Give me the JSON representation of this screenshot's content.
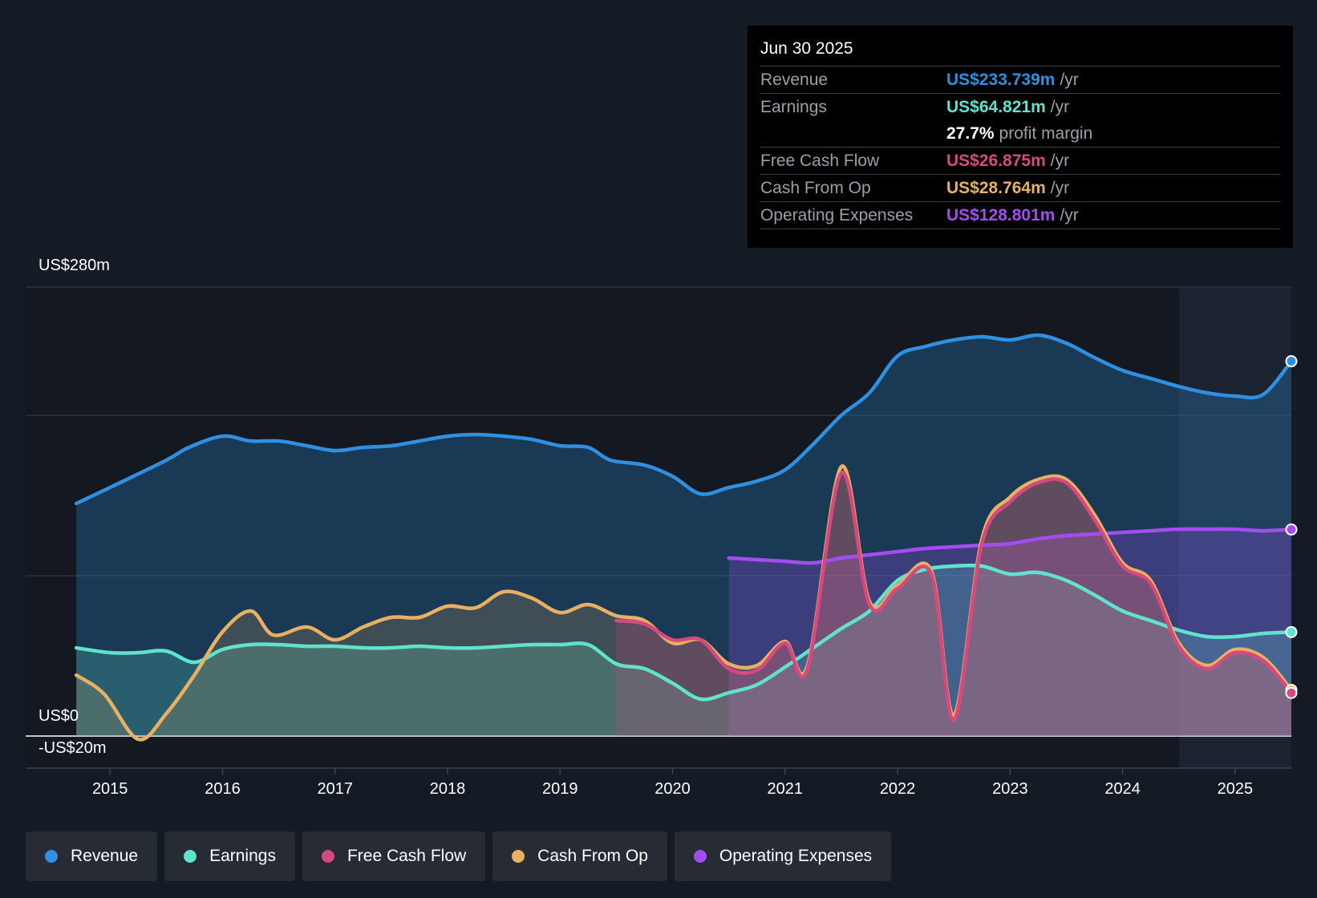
{
  "chart_data": {
    "type": "line",
    "title": "",
    "ylabel": "",
    "xlabel": "",
    "ylim": [
      -20,
      280
    ],
    "y_labels": {
      "top": "US$280m",
      "zero": "US$0",
      "bottom": "-US$20m"
    },
    "x_ticks": [
      "2015",
      "2016",
      "2017",
      "2018",
      "2019",
      "2020",
      "2021",
      "2022",
      "2023",
      "2024",
      "2025"
    ],
    "x_tick_values": [
      2015,
      2016,
      2017,
      2018,
      2019,
      2020,
      2021,
      2022,
      2023,
      2024,
      2025
    ],
    "xlim": [
      2014.25,
      2025.5
    ],
    "series": [
      {
        "name": "Revenue",
        "color": "#2f8fe0",
        "points": [
          [
            2014.7,
            145
          ],
          [
            2015.0,
            155
          ],
          [
            2015.5,
            172
          ],
          [
            2015.7,
            180
          ],
          [
            2016.0,
            187
          ],
          [
            2016.25,
            184
          ],
          [
            2016.5,
            184
          ],
          [
            2016.75,
            181
          ],
          [
            2017.0,
            178
          ],
          [
            2017.25,
            180
          ],
          [
            2017.5,
            181
          ],
          [
            2017.75,
            184
          ],
          [
            2018.0,
            187
          ],
          [
            2018.25,
            188
          ],
          [
            2018.5,
            187
          ],
          [
            2018.75,
            185
          ],
          [
            2019.0,
            181
          ],
          [
            2019.25,
            180
          ],
          [
            2019.45,
            172
          ],
          [
            2019.75,
            169
          ],
          [
            2020.0,
            162
          ],
          [
            2020.25,
            151
          ],
          [
            2020.5,
            155
          ],
          [
            2020.75,
            159
          ],
          [
            2021.0,
            166
          ],
          [
            2021.25,
            182
          ],
          [
            2021.5,
            200
          ],
          [
            2021.75,
            214
          ],
          [
            2022.0,
            237
          ],
          [
            2022.25,
            243
          ],
          [
            2022.5,
            247
          ],
          [
            2022.75,
            249
          ],
          [
            2023.0,
            247
          ],
          [
            2023.25,
            250
          ],
          [
            2023.5,
            245
          ],
          [
            2023.75,
            236
          ],
          [
            2024.0,
            228
          ],
          [
            2024.25,
            223
          ],
          [
            2024.5,
            218
          ],
          [
            2024.75,
            214
          ],
          [
            2025.0,
            212
          ],
          [
            2025.25,
            213
          ],
          [
            2025.5,
            233.739
          ]
        ]
      },
      {
        "name": "Earnings",
        "color": "#5fe3cc",
        "points": [
          [
            2014.7,
            55
          ],
          [
            2015.0,
            52
          ],
          [
            2015.25,
            52
          ],
          [
            2015.5,
            53
          ],
          [
            2015.75,
            46
          ],
          [
            2016.0,
            54
          ],
          [
            2016.25,
            57
          ],
          [
            2016.5,
            57
          ],
          [
            2016.75,
            56
          ],
          [
            2017.0,
            56
          ],
          [
            2017.25,
            55
          ],
          [
            2017.5,
            55
          ],
          [
            2017.75,
            56
          ],
          [
            2018.0,
            55
          ],
          [
            2018.25,
            55
          ],
          [
            2018.5,
            56
          ],
          [
            2018.75,
            57
          ],
          [
            2019.0,
            57
          ],
          [
            2019.25,
            57
          ],
          [
            2019.5,
            45
          ],
          [
            2019.75,
            42
          ],
          [
            2020.0,
            33
          ],
          [
            2020.25,
            23
          ],
          [
            2020.5,
            27
          ],
          [
            2020.75,
            32
          ],
          [
            2021.0,
            43
          ],
          [
            2021.25,
            55
          ],
          [
            2021.5,
            67
          ],
          [
            2021.75,
            78
          ],
          [
            2022.0,
            97
          ],
          [
            2022.25,
            104
          ],
          [
            2022.5,
            106
          ],
          [
            2022.75,
            106
          ],
          [
            2023.0,
            101
          ],
          [
            2023.25,
            102
          ],
          [
            2023.5,
            97
          ],
          [
            2023.75,
            88
          ],
          [
            2024.0,
            78
          ],
          [
            2024.25,
            72
          ],
          [
            2024.5,
            66
          ],
          [
            2024.75,
            62
          ],
          [
            2025.0,
            62
          ],
          [
            2025.25,
            64
          ],
          [
            2025.5,
            64.821
          ]
        ]
      },
      {
        "name": "Free Cash Flow",
        "color": "#d6497f",
        "points": [
          [
            2019.5,
            72
          ],
          [
            2019.75,
            70
          ],
          [
            2020.0,
            60
          ],
          [
            2020.25,
            60
          ],
          [
            2020.5,
            42
          ],
          [
            2020.75,
            41
          ],
          [
            2021.0,
            58
          ],
          [
            2021.2,
            42
          ],
          [
            2021.5,
            164
          ],
          [
            2021.75,
            82
          ],
          [
            2022.0,
            92
          ],
          [
            2022.3,
            101
          ],
          [
            2022.5,
            10
          ],
          [
            2022.75,
            120
          ],
          [
            2023.0,
            146
          ],
          [
            2023.25,
            158
          ],
          [
            2023.5,
            158
          ],
          [
            2023.75,
            135
          ],
          [
            2024.0,
            106
          ],
          [
            2024.25,
            95
          ],
          [
            2024.5,
            56
          ],
          [
            2024.75,
            42
          ],
          [
            2025.0,
            52
          ],
          [
            2025.25,
            47
          ],
          [
            2025.5,
            26.875
          ]
        ]
      },
      {
        "name": "Cash From Op",
        "color": "#e8b061",
        "points": [
          [
            2014.7,
            38
          ],
          [
            2014.95,
            26
          ],
          [
            2015.25,
            -2
          ],
          [
            2015.5,
            14
          ],
          [
            2015.75,
            38
          ],
          [
            2016.0,
            65
          ],
          [
            2016.25,
            78
          ],
          [
            2016.45,
            63
          ],
          [
            2016.75,
            68
          ],
          [
            2017.0,
            60
          ],
          [
            2017.25,
            68
          ],
          [
            2017.5,
            74
          ],
          [
            2017.75,
            74
          ],
          [
            2018.0,
            81
          ],
          [
            2018.25,
            80
          ],
          [
            2018.5,
            90
          ],
          [
            2018.75,
            86
          ],
          [
            2019.0,
            77
          ],
          [
            2019.25,
            82
          ],
          [
            2019.5,
            75
          ],
          [
            2019.75,
            72
          ],
          [
            2020.0,
            58
          ],
          [
            2020.25,
            60
          ],
          [
            2020.5,
            45
          ],
          [
            2020.75,
            44
          ],
          [
            2021.0,
            59
          ],
          [
            2021.2,
            44
          ],
          [
            2021.5,
            168
          ],
          [
            2021.75,
            84
          ],
          [
            2022.0,
            94
          ],
          [
            2022.3,
            103
          ],
          [
            2022.5,
            13
          ],
          [
            2022.75,
            123
          ],
          [
            2023.0,
            149
          ],
          [
            2023.25,
            160
          ],
          [
            2023.5,
            160
          ],
          [
            2023.75,
            138
          ],
          [
            2024.0,
            108
          ],
          [
            2024.25,
            97
          ],
          [
            2024.5,
            58
          ],
          [
            2024.75,
            44
          ],
          [
            2025.0,
            54
          ],
          [
            2025.25,
            49
          ],
          [
            2025.5,
            28.764
          ]
        ]
      },
      {
        "name": "Operating Expenses",
        "color": "#a34df0",
        "points": [
          [
            2020.5,
            111
          ],
          [
            2020.75,
            110
          ],
          [
            2021.0,
            109
          ],
          [
            2021.25,
            108
          ],
          [
            2021.5,
            111
          ],
          [
            2021.75,
            113
          ],
          [
            2022.0,
            115
          ],
          [
            2022.25,
            117
          ],
          [
            2022.5,
            118
          ],
          [
            2022.75,
            119
          ],
          [
            2023.0,
            120
          ],
          [
            2023.25,
            123
          ],
          [
            2023.5,
            125
          ],
          [
            2023.75,
            126
          ],
          [
            2024.0,
            127
          ],
          [
            2024.25,
            128
          ],
          [
            2024.5,
            129
          ],
          [
            2024.75,
            129
          ],
          [
            2025.0,
            129
          ],
          [
            2025.25,
            128
          ],
          [
            2025.5,
            128.801
          ]
        ]
      }
    ]
  },
  "tooltip": {
    "date": "Jun 30 2025",
    "revenue_label": "Revenue",
    "revenue_value": "US$233.739m",
    "revenue_unit": "/yr",
    "earnings_label": "Earnings",
    "earnings_value": "US$64.821m",
    "earnings_unit": "/yr",
    "margin_value": "27.7%",
    "margin_label": "profit margin",
    "fcf_label": "Free Cash Flow",
    "fcf_value": "US$26.875m",
    "fcf_unit": "/yr",
    "cfo_label": "Cash From Op",
    "cfo_value": "US$28.764m",
    "cfo_unit": "/yr",
    "opex_label": "Operating Expenses",
    "opex_value": "US$128.801m",
    "opex_unit": "/yr"
  },
  "legend": {
    "revenue": "Revenue",
    "earnings": "Earnings",
    "fcf": "Free Cash Flow",
    "cfo": "Cash From Op",
    "opex": "Operating Expenses"
  },
  "colors": {
    "revenue": "#2f8fe0",
    "earnings": "#5fe3cc",
    "fcf": "#d6497f",
    "cfo": "#e8b061",
    "opex": "#a34df0",
    "text_muted": "#9aa0a8"
  }
}
